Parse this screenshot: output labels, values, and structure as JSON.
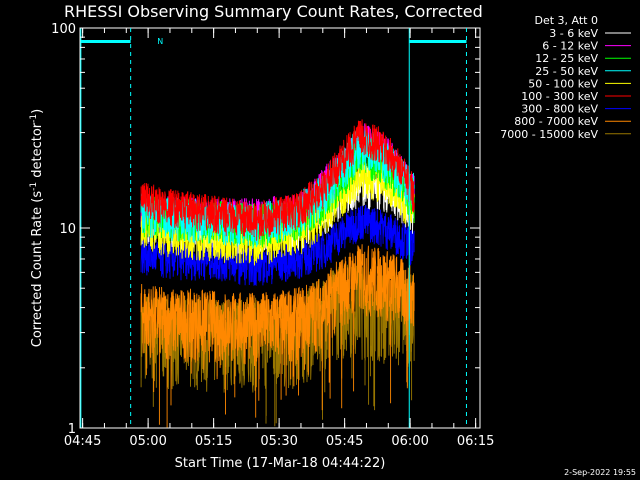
{
  "chart_data": {
    "type": "line",
    "title": "RHESSI Observing Summary Count Rates, Corrected",
    "xlabel": "Start Time (17-Mar-18 04:44:22)",
    "ylabel_main": "Corrected Count Rate (s",
    "ylabel_sup1": "-1",
    "ylabel_mid": " detector",
    "ylabel_sup2": "-1",
    "ylabel_end": ")",
    "yscale": "log",
    "ylim": [
      1,
      100
    ],
    "xlim_minutes": [
      0,
      91.6
    ],
    "xticks": [
      {
        "label": "04:45",
        "minutes": 0.6
      },
      {
        "label": "05:00",
        "minutes": 15.6
      },
      {
        "label": "05:15",
        "minutes": 30.6
      },
      {
        "label": "05:30",
        "minutes": 45.6
      },
      {
        "label": "05:45",
        "minutes": 60.6
      },
      {
        "label": "06:00",
        "minutes": 75.6
      },
      {
        "label": "06:15",
        "minutes": 90.6
      }
    ],
    "yticks": [
      {
        "label": "1",
        "value": 1
      },
      {
        "label": "10",
        "value": 10
      },
      {
        "label": "100",
        "value": 100
      }
    ],
    "legend_position": "top-right",
    "legend_header": "Det 3, Att 0",
    "series": [
      {
        "name": "3 - 6 keV",
        "color": "#ffffff",
        "x": [
          14.0,
          20,
          30,
          40,
          50,
          56,
          60,
          64,
          68,
          72,
          76.5
        ],
        "y": [
          11,
          10.5,
          10,
          9.5,
          10.2,
          12,
          15,
          17,
          16,
          15,
          12
        ]
      },
      {
        "name": "6 - 12 keV",
        "color": "#ff00ff",
        "x": [
          14.0,
          30,
          50,
          60,
          65,
          70,
          76.5
        ],
        "y": [
          12,
          11.5,
          12,
          20,
          28,
          24,
          15
        ]
      },
      {
        "name": "12 - 25 keV",
        "color": "#00ff00",
        "x": [
          14.0,
          20,
          30,
          40,
          50,
          56,
          60,
          64,
          68,
          72,
          76.5
        ],
        "y": [
          12,
          11.5,
          11,
          10.5,
          11.5,
          14,
          18,
          24,
          22,
          19,
          14
        ]
      },
      {
        "name": "25 - 50 keV",
        "color": "#00ffff",
        "x": [
          14.0,
          20,
          30,
          40,
          50,
          56,
          60,
          64,
          68,
          72,
          76.5
        ],
        "y": [
          12,
          11.5,
          11,
          10.5,
          12,
          15,
          20,
          26,
          24,
          20,
          15
        ]
      },
      {
        "name": "50 - 100 keV",
        "color": "#ffff00",
        "x": [
          14.0,
          20,
          30,
          40,
          50,
          56,
          60,
          64,
          68,
          72,
          76.5
        ],
        "y": [
          10,
          9.5,
          9,
          8.5,
          9.5,
          12,
          15,
          19,
          18,
          16,
          12
        ]
      },
      {
        "name": "100 - 300 keV",
        "color": "#ff0000",
        "x": [
          14.0,
          20,
          30,
          40,
          50,
          56,
          60,
          64,
          68,
          72,
          76.5
        ],
        "y": [
          14,
          13,
          12,
          11,
          12.5,
          16,
          22,
          29,
          27,
          22,
          15
        ]
      },
      {
        "name": "300 - 800 keV",
        "color": "#0000ff",
        "x": [
          14.0,
          20,
          30,
          40,
          50,
          56,
          60,
          64,
          68,
          72,
          76.5
        ],
        "y": [
          7.5,
          7,
          7,
          6.5,
          7,
          8,
          9.5,
          11,
          10.5,
          9.5,
          8
        ]
      },
      {
        "name": "800 - 7000 keV",
        "color": "#ff8800",
        "x": [
          14.0,
          20,
          30,
          40,
          50,
          56,
          60,
          64,
          68,
          72,
          76.5
        ],
        "y": [
          3.8,
          3.6,
          3.5,
          3.4,
          3.6,
          4.2,
          5.2,
          6,
          5.8,
          5.4,
          4.5
        ]
      },
      {
        "name": "7000 - 15000 keV",
        "color": "#997700",
        "x": [
          14.0,
          30,
          50,
          60,
          76.5
        ],
        "y": [
          3.2,
          3,
          3,
          4.5,
          4
        ]
      }
    ],
    "attenuator_markers": [
      {
        "label": "N",
        "minutes": 17.7
      }
    ]
  },
  "footer": {
    "timestamp": "2-Sep-2022 19:55"
  }
}
